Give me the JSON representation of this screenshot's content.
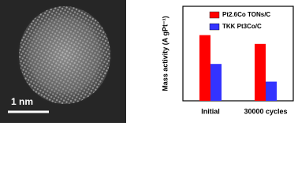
{
  "image": {
    "scale_label": "1 nm"
  },
  "chart_data": {
    "type": "bar",
    "y_label": "Mass activity (A gPt⁻¹)",
    "categories": [
      "Initial",
      "30000 cycles"
    ],
    "series": [
      {
        "name": "Pt2.6Co TONs/C",
        "color": "#ff0000",
        "values": [
          417,
          361
        ]
      },
      {
        "name": "TKK Pt3Co/C",
        "color": "#3333ff",
        "values": [
          234,
          122
        ]
      }
    ],
    "ylim": [
      0,
      600
    ],
    "legend": "upper-right"
  }
}
